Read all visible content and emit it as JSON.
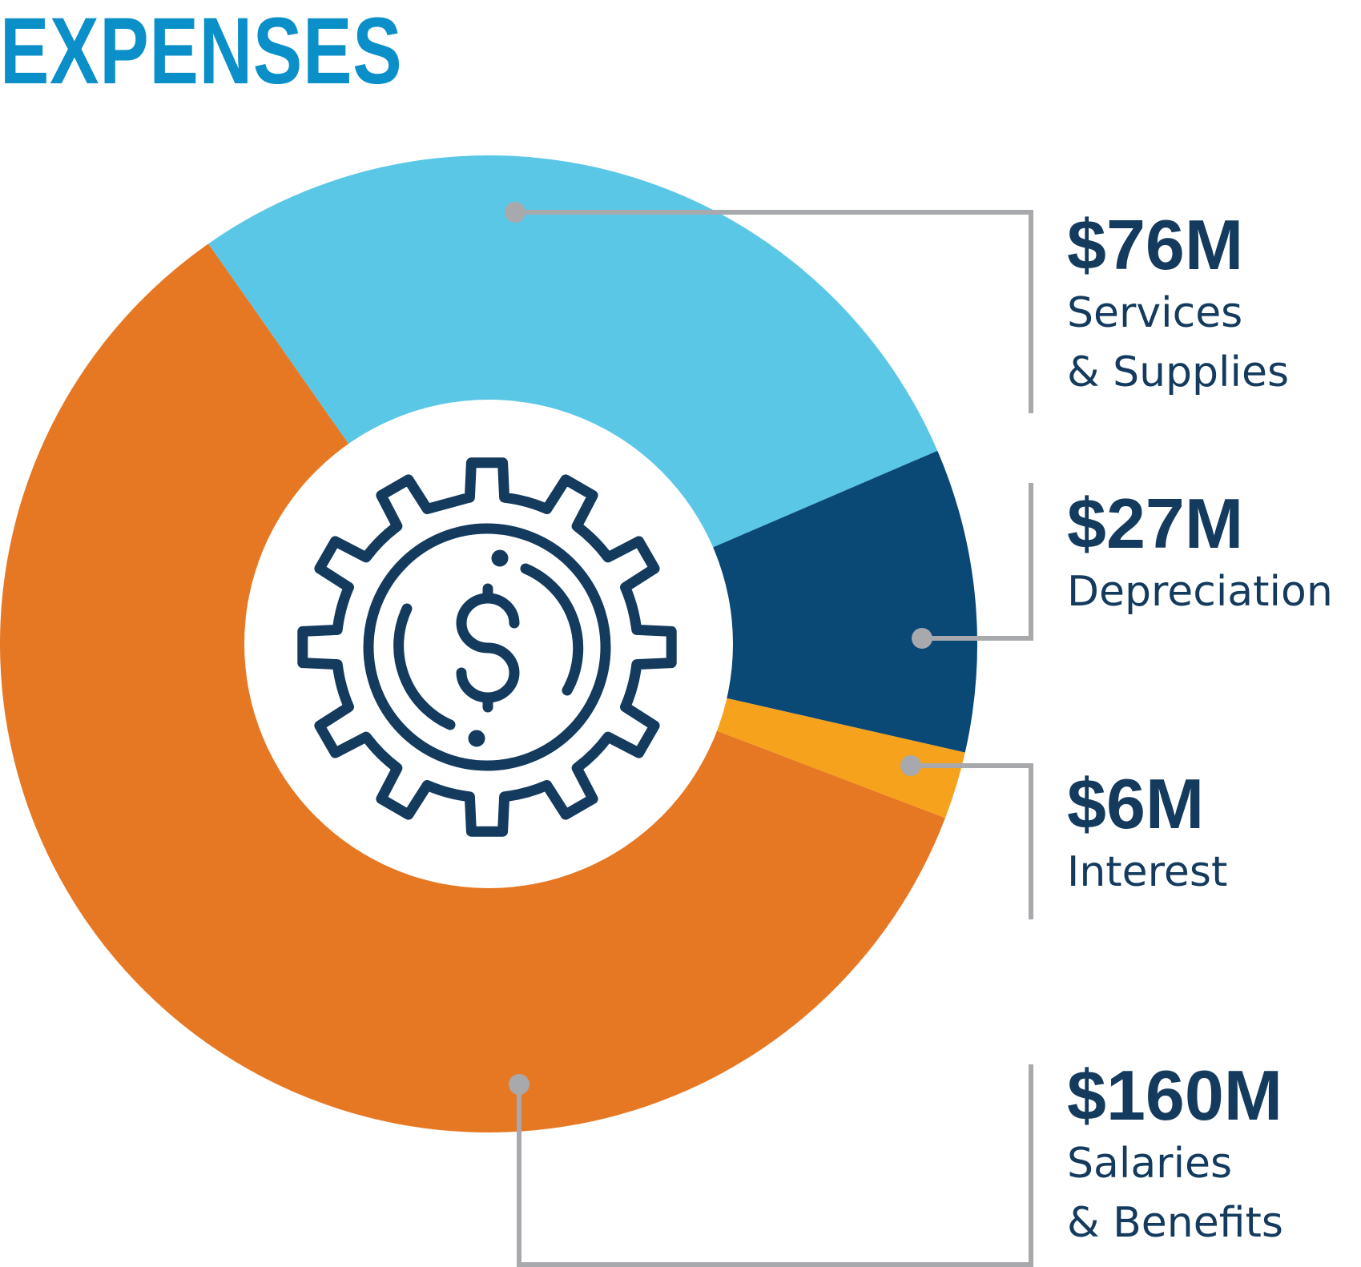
{
  "title": "EXPENSES",
  "colors": {
    "title": "#0b8fc9",
    "text": "#143b5e",
    "leader": "#a8a9ad",
    "icon": "#143b5e"
  },
  "icon": "gear-dollar-icon",
  "chart_data": {
    "type": "pie",
    "title": "EXPENSES",
    "unit": "$M",
    "slices": [
      {
        "label_lines": [
          "Services",
          "& Supplies"
        ],
        "value": 76,
        "value_label": "$76M",
        "color": "#5bc7e6"
      },
      {
        "label_lines": [
          "Depreciation"
        ],
        "value": 27,
        "value_label": "$27M",
        "color": "#0a4876"
      },
      {
        "label_lines": [
          "Interest"
        ],
        "value": 6,
        "value_label": "$6M",
        "color": "#f6a21c"
      },
      {
        "label_lines": [
          "Salaries",
          "& Benefits"
        ],
        "value": 160,
        "value_label": "$160M",
        "color": "#e67824"
      }
    ]
  }
}
